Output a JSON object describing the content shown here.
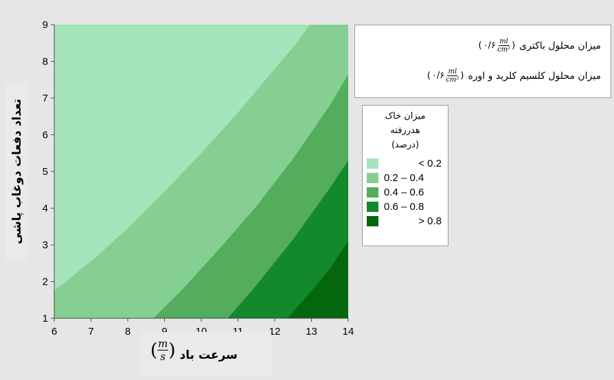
{
  "chart_data": {
    "type": "contour",
    "xlabel": "سرعت باد",
    "xlabel_unit": {
      "num": "m",
      "den": "s"
    },
    "ylabel": "تعداد دفعات دوغاب پاشی",
    "xlim": [
      6,
      14
    ],
    "ylim": [
      1,
      9
    ],
    "xticks": [
      "6",
      "7",
      "8",
      "9",
      "10",
      "11",
      "12",
      "13",
      "14"
    ],
    "yticks": [
      "1",
      "2",
      "3",
      "4",
      "5",
      "6",
      "7",
      "8",
      "9"
    ],
    "contour_boundaries": [
      {
        "level": 0.2,
        "points": [
          [
            6,
            1.75
          ],
          [
            7,
            2.55
          ],
          [
            8,
            3.45
          ],
          [
            9,
            4.45
          ],
          [
            10,
            5.5
          ],
          [
            11,
            6.6
          ],
          [
            12,
            7.8
          ],
          [
            12.6,
            8.5
          ],
          [
            12.95,
            9
          ]
        ]
      },
      {
        "level": 0.4,
        "points": [
          [
            8.7,
            1
          ],
          [
            9.5,
            1.8
          ],
          [
            10.5,
            2.9
          ],
          [
            11.5,
            4.05
          ],
          [
            12.5,
            5.35
          ],
          [
            13.5,
            6.8
          ],
          [
            14,
            7.65
          ]
        ]
      },
      {
        "level": 0.6,
        "points": [
          [
            10.72,
            1
          ],
          [
            11.5,
            1.9
          ],
          [
            12.5,
            3.15
          ],
          [
            13.5,
            4.55
          ],
          [
            14,
            5.3
          ]
        ]
      },
      {
        "level": 0.8,
        "points": [
          [
            12.35,
            1
          ],
          [
            13,
            1.75
          ],
          [
            13.5,
            2.35
          ],
          [
            14,
            3.1
          ]
        ]
      }
    ],
    "legend": {
      "title": [
        "میزان خاک",
        "هدررفته",
        "(درصد)"
      ],
      "entries": [
        {
          "label": "< 0.2",
          "color": "#a6e4bb"
        },
        {
          "label": "0.2 – 0.4",
          "color": "#84cf91"
        },
        {
          "label": "0.4 – 0.6",
          "color": "#53ad5d"
        },
        {
          "label": "0.6 – 0.8",
          "color": "#12892c"
        },
        {
          "label": "> 0.8",
          "color": "#05670d"
        }
      ]
    },
    "hold_values": [
      {
        "label": "میزان محلول باکتری",
        "value": "۰/۶",
        "unit_num": "ml",
        "unit_den": "cm²"
      },
      {
        "label": "میزان محلول کلسیم کلرید و اوره",
        "value": "۰/۶",
        "unit_num": "ml",
        "unit_den": "cm²"
      }
    ]
  }
}
